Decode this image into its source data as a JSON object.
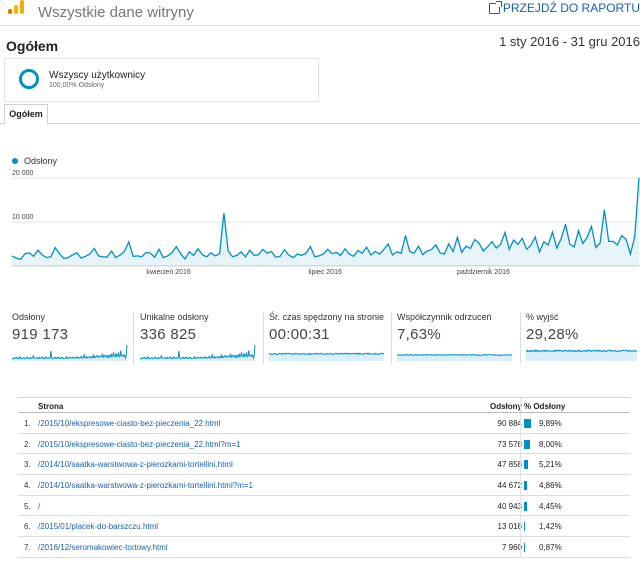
{
  "header": {
    "view_title": "Wszystkie dane witryny",
    "goto_report": "PRZEJDŹ DO RAPORTU",
    "brand_colors": [
      "#f9ab00",
      "#e37400",
      "#f4b400"
    ]
  },
  "overview": {
    "title": "Ogółem",
    "date_range": "1 sty 2016 - 31 gru 2016"
  },
  "segment": {
    "name": "Wszyscy użytkownicy",
    "subtitle": "100,00% Odsłony",
    "color": "#058dc7"
  },
  "tabs": [
    {
      "label": "Ogółem",
      "active": true
    }
  ],
  "chart_data": {
    "type": "line",
    "title": "",
    "series": [
      {
        "name": "Odsłony",
        "values": [
          2300,
          1800,
          1500,
          2800,
          3000,
          2200,
          3600,
          2500,
          1900,
          2100,
          4200,
          2800,
          1700,
          1900,
          2500,
          3000,
          1800,
          2200,
          2700,
          4000,
          2300,
          2100,
          2000,
          3400,
          1900,
          2500,
          3300,
          5500,
          2200,
          2300,
          2100,
          3100,
          2900,
          2000,
          3800,
          1900,
          2300,
          3000,
          4400,
          2800,
          1600,
          3200,
          2400,
          3900,
          2600,
          2100,
          3000,
          2300,
          2800,
          12000,
          3400,
          2100,
          2400,
          3200,
          2100,
          3600,
          2400,
          2600,
          3800,
          2900,
          3300,
          2000,
          2200,
          3700,
          2500,
          1900,
          2700,
          2400,
          2900,
          4400,
          2100,
          2300,
          2700,
          3800,
          2800,
          3100,
          2400,
          3900,
          2700,
          2200,
          3500,
          2900,
          4300,
          2500,
          3300,
          2700,
          3800,
          5000,
          2500,
          3200,
          2900,
          6900,
          3300,
          2900,
          4500,
          2600,
          3400,
          3700,
          4800,
          3000,
          2700,
          5000,
          3300,
          6500,
          3100,
          4500,
          4000,
          6000,
          5200,
          3400,
          4400,
          5500,
          4100,
          4900,
          7600,
          3800,
          5900,
          4900,
          6300,
          3800,
          4700,
          6600,
          3200,
          5500,
          4800,
          7700,
          4100,
          6200,
          9500,
          5000,
          4300,
          8000,
          5100,
          6500,
          9000,
          4200,
          5200,
          12800,
          5600,
          5600,
          4800,
          6900,
          6100,
          2700,
          6600,
          20000
        ],
        "color": "#058dc7"
      }
    ],
    "ylim": [
      0,
      20000
    ],
    "y_ticks": [
      {
        "value": 20000,
        "label": "20 000"
      },
      {
        "value": 10000,
        "label": "10 000"
      }
    ],
    "x_ticks": [
      {
        "date": "2016-04-01",
        "label": "kwiecień 2016"
      },
      {
        "date": "2016-07-01",
        "label": "lipiec 2016"
      },
      {
        "date": "2016-10-01",
        "label": "październik 2016"
      }
    ],
    "grid": true
  },
  "metrics": [
    {
      "label": "Odsłony",
      "value": "919 173"
    },
    {
      "label": "Unikalne odsłony",
      "value": "336 825"
    },
    {
      "label": "Śr. czas spędzony na stronie",
      "value": "00:00:31"
    },
    {
      "label": "Współczynnik odrzuceń",
      "value": "7,63%"
    },
    {
      "label": "% wyjść",
      "value": "29,28%"
    }
  ],
  "table": {
    "headers": {
      "page": "Strona",
      "views": "Odsłony",
      "pct": "% Odsłony"
    },
    "rows": [
      {
        "idx": "1.",
        "page": "/2015/10/ekspresowe-ciasto-bez-pieczenia_22.html",
        "views": "90 884",
        "pct": "9,89%",
        "pct_value": 9.89
      },
      {
        "idx": "2.",
        "page": "/2015/10/ekspresowe-ciasto-bez-pieczenia_22.html?m=1",
        "views": "73 578",
        "pct": "8,00%",
        "pct_value": 8.0
      },
      {
        "idx": "3.",
        "page": "/2014/10/saatka-warstwowa-z-pierozkami-tortellini.html",
        "views": "47 858",
        "pct": "5,21%",
        "pct_value": 5.21
      },
      {
        "idx": "4.",
        "page": "/2014/10/saatka-warstwowa-z-pierozkami-tortellini.html?m=1",
        "views": "44 672",
        "pct": "4,86%",
        "pct_value": 4.86
      },
      {
        "idx": "5.",
        "page": "/",
        "views": "40 943",
        "pct": "4,45%",
        "pct_value": 4.45
      },
      {
        "idx": "6.",
        "page": "/2015/01/placek-do-barszczu.html",
        "views": "13 018",
        "pct": "1,42%",
        "pct_value": 1.42
      },
      {
        "idx": "7.",
        "page": "/2016/12/seromakowiec-tortowy.html",
        "views": "7 960",
        "pct": "0,87%",
        "pct_value": 0.87
      }
    ]
  }
}
